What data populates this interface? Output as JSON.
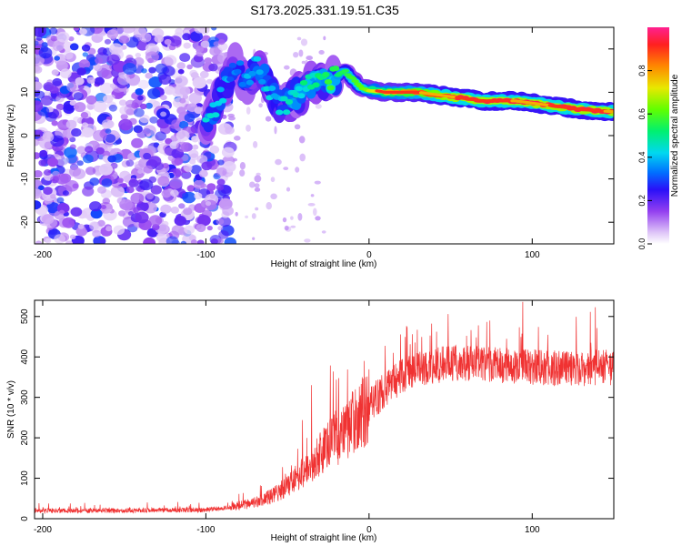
{
  "chart_data": [
    {
      "type": "heatmap",
      "title": "S173.2025.331.19.51.C35",
      "xlabel": "Height of straight line (km)",
      "ylabel": "Frequency (Hz)",
      "xlim": [
        -205,
        150
      ],
      "ylim": [
        -25,
        25
      ],
      "xticks": [
        -200,
        -100,
        0,
        100
      ],
      "yticks": [
        -20,
        -10,
        0,
        10,
        20
      ],
      "colorbar": {
        "label": "Normalized spectral amplitude",
        "range": [
          0,
          1
        ],
        "ticks": [
          "0.0",
          "0.2",
          "0.4",
          "0.6",
          "0.8"
        ]
      },
      "ridge_points": [
        {
          "x": -98,
          "y": 4
        },
        {
          "x": -82,
          "y": 16
        },
        {
          "x": -75,
          "y": 12
        },
        {
          "x": -68,
          "y": 17
        },
        {
          "x": -62,
          "y": 11
        },
        {
          "x": -55,
          "y": 7
        },
        {
          "x": -45,
          "y": 9
        },
        {
          "x": -35,
          "y": 12
        },
        {
          "x": -25,
          "y": 12.5
        },
        {
          "x": -15,
          "y": 15
        },
        {
          "x": -5,
          "y": 11
        },
        {
          "x": 10,
          "y": 10
        },
        {
          "x": 30,
          "y": 10
        },
        {
          "x": 50,
          "y": 9
        },
        {
          "x": 70,
          "y": 8
        },
        {
          "x": 90,
          "y": 8
        },
        {
          "x": 110,
          "y": 7
        },
        {
          "x": 130,
          "y": 6
        },
        {
          "x": 150,
          "y": 5.5
        }
      ]
    },
    {
      "type": "line",
      "xlabel": "Height of straight line (km)",
      "ylabel": "SNR (10 * v/v)",
      "xlim": [
        -205,
        150
      ],
      "ylim": [
        0,
        540
      ],
      "xticks": [
        -200,
        -100,
        0,
        100
      ],
      "yticks": [
        0,
        100,
        200,
        300,
        400,
        500
      ],
      "color": "#f03232",
      "series": [
        {
          "name": "SNR",
          "trend_x": [
            -205,
            -150,
            -100,
            -85,
            -70,
            -60,
            -50,
            -40,
            -30,
            -20,
            -10,
            0,
            10,
            20,
            30,
            50,
            80,
            100,
            120,
            150
          ],
          "trend_y": [
            20,
            20,
            22,
            28,
            40,
            55,
            80,
            115,
            160,
            200,
            240,
            280,
            320,
            350,
            370,
            385,
            380,
            375,
            370,
            375
          ]
        }
      ]
    }
  ]
}
